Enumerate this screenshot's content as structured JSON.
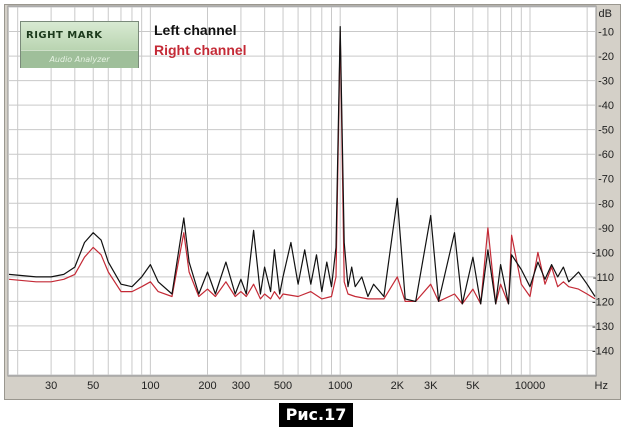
{
  "chart_data": {
    "type": "line",
    "title": "",
    "xscale": "log",
    "xlim": [
      18,
      22000
    ],
    "ylim": [
      -150,
      0
    ],
    "y_unit": "dB",
    "x_unit": "Hz",
    "grid": true,
    "legend_position": "top-left",
    "x_ticks": [
      {
        "label": "30",
        "value": 30
      },
      {
        "label": "50",
        "value": 50
      },
      {
        "label": "100",
        "value": 100
      },
      {
        "label": "200",
        "value": 200
      },
      {
        "label": "300",
        "value": 300
      },
      {
        "label": "500",
        "value": 500
      },
      {
        "label": "1000",
        "value": 1000
      },
      {
        "label": "2K",
        "value": 2000
      },
      {
        "label": "3K",
        "value": 3000
      },
      {
        "label": "5K",
        "value": 5000
      },
      {
        "label": "10000",
        "value": 10000
      }
    ],
    "y_ticks": [
      -10,
      -20,
      -30,
      -40,
      -50,
      -60,
      -70,
      -80,
      -90,
      -100,
      -110,
      -120,
      -130,
      -140
    ],
    "series": [
      {
        "name": "Left channel",
        "color": "#111111",
        "points": [
          [
            18,
            -109
          ],
          [
            25,
            -110
          ],
          [
            30,
            -110
          ],
          [
            35,
            -109
          ],
          [
            40,
            -106
          ],
          [
            45,
            -96
          ],
          [
            50,
            -92
          ],
          [
            55,
            -95
          ],
          [
            60,
            -104
          ],
          [
            70,
            -113
          ],
          [
            80,
            -114
          ],
          [
            90,
            -110
          ],
          [
            100,
            -105
          ],
          [
            110,
            -112
          ],
          [
            130,
            -117
          ],
          [
            150,
            -86
          ],
          [
            160,
            -104
          ],
          [
            180,
            -117
          ],
          [
            200,
            -108
          ],
          [
            220,
            -117
          ],
          [
            250,
            -104
          ],
          [
            280,
            -117
          ],
          [
            300,
            -111
          ],
          [
            320,
            -117
          ],
          [
            350,
            -91
          ],
          [
            380,
            -117
          ],
          [
            400,
            -106
          ],
          [
            430,
            -116
          ],
          [
            450,
            -99
          ],
          [
            480,
            -117
          ],
          [
            500,
            -110
          ],
          [
            550,
            -96
          ],
          [
            600,
            -113
          ],
          [
            650,
            -99
          ],
          [
            700,
            -113
          ],
          [
            750,
            -101
          ],
          [
            800,
            -116
          ],
          [
            850,
            -104
          ],
          [
            900,
            -114
          ],
          [
            950,
            -98
          ],
          [
            1000,
            -8
          ],
          [
            1050,
            -96
          ],
          [
            1100,
            -114
          ],
          [
            1150,
            -106
          ],
          [
            1200,
            -114
          ],
          [
            1300,
            -110
          ],
          [
            1400,
            -118
          ],
          [
            1500,
            -113
          ],
          [
            1700,
            -118
          ],
          [
            2000,
            -78
          ],
          [
            2200,
            -119
          ],
          [
            2500,
            -120
          ],
          [
            3000,
            -85
          ],
          [
            3300,
            -120
          ],
          [
            4000,
            -92
          ],
          [
            4400,
            -121
          ],
          [
            5000,
            -102
          ],
          [
            5500,
            -121
          ],
          [
            6000,
            -99
          ],
          [
            6600,
            -121
          ],
          [
            7000,
            -105
          ],
          [
            7700,
            -121
          ],
          [
            8000,
            -101
          ],
          [
            9000,
            -107
          ],
          [
            10000,
            -114
          ],
          [
            11000,
            -104
          ],
          [
            12000,
            -111
          ],
          [
            13000,
            -105
          ],
          [
            14000,
            -110
          ],
          [
            15000,
            -106
          ],
          [
            16000,
            -112
          ],
          [
            17000,
            -110
          ],
          [
            18000,
            -108
          ],
          [
            20000,
            -113
          ],
          [
            22000,
            -118
          ]
        ]
      },
      {
        "name": "Right channel",
        "color": "#c42a36",
        "points": [
          [
            18,
            -111
          ],
          [
            25,
            -112
          ],
          [
            30,
            -112
          ],
          [
            35,
            -111
          ],
          [
            40,
            -109
          ],
          [
            45,
            -102
          ],
          [
            50,
            -98
          ],
          [
            55,
            -101
          ],
          [
            60,
            -108
          ],
          [
            70,
            -116
          ],
          [
            80,
            -116
          ],
          [
            90,
            -114
          ],
          [
            100,
            -112
          ],
          [
            110,
            -116
          ],
          [
            130,
            -118
          ],
          [
            150,
            -92
          ],
          [
            160,
            -108
          ],
          [
            180,
            -118
          ],
          [
            200,
            -115
          ],
          [
            220,
            -118
          ],
          [
            250,
            -112
          ],
          [
            280,
            -118
          ],
          [
            300,
            -116
          ],
          [
            320,
            -118
          ],
          [
            350,
            -113
          ],
          [
            380,
            -119
          ],
          [
            400,
            -117
          ],
          [
            430,
            -119
          ],
          [
            450,
            -116
          ],
          [
            480,
            -119
          ],
          [
            500,
            -117
          ],
          [
            600,
            -118
          ],
          [
            700,
            -116
          ],
          [
            800,
            -119
          ],
          [
            900,
            -118
          ],
          [
            950,
            -110
          ],
          [
            1000,
            -10
          ],
          [
            1050,
            -112
          ],
          [
            1100,
            -117
          ],
          [
            1200,
            -118
          ],
          [
            1400,
            -119
          ],
          [
            1700,
            -119
          ],
          [
            2000,
            -110
          ],
          [
            2200,
            -120
          ],
          [
            2500,
            -120
          ],
          [
            3000,
            -113
          ],
          [
            3300,
            -120
          ],
          [
            4000,
            -117
          ],
          [
            4400,
            -121
          ],
          [
            5000,
            -115
          ],
          [
            5500,
            -121
          ],
          [
            6000,
            -90
          ],
          [
            6600,
            -121
          ],
          [
            7000,
            -113
          ],
          [
            7700,
            -121
          ],
          [
            8000,
            -93
          ],
          [
            9000,
            -113
          ],
          [
            10000,
            -118
          ],
          [
            11000,
            -100
          ],
          [
            12000,
            -113
          ],
          [
            13000,
            -106
          ],
          [
            14000,
            -114
          ],
          [
            15000,
            -112
          ],
          [
            16000,
            -114
          ],
          [
            18000,
            -115
          ],
          [
            20000,
            -117
          ],
          [
            22000,
            -119
          ]
        ]
      }
    ]
  },
  "logo": {
    "text": "RIGHT MARK",
    "subtitle": "Audio Analyzer"
  },
  "caption": "Рис.17"
}
